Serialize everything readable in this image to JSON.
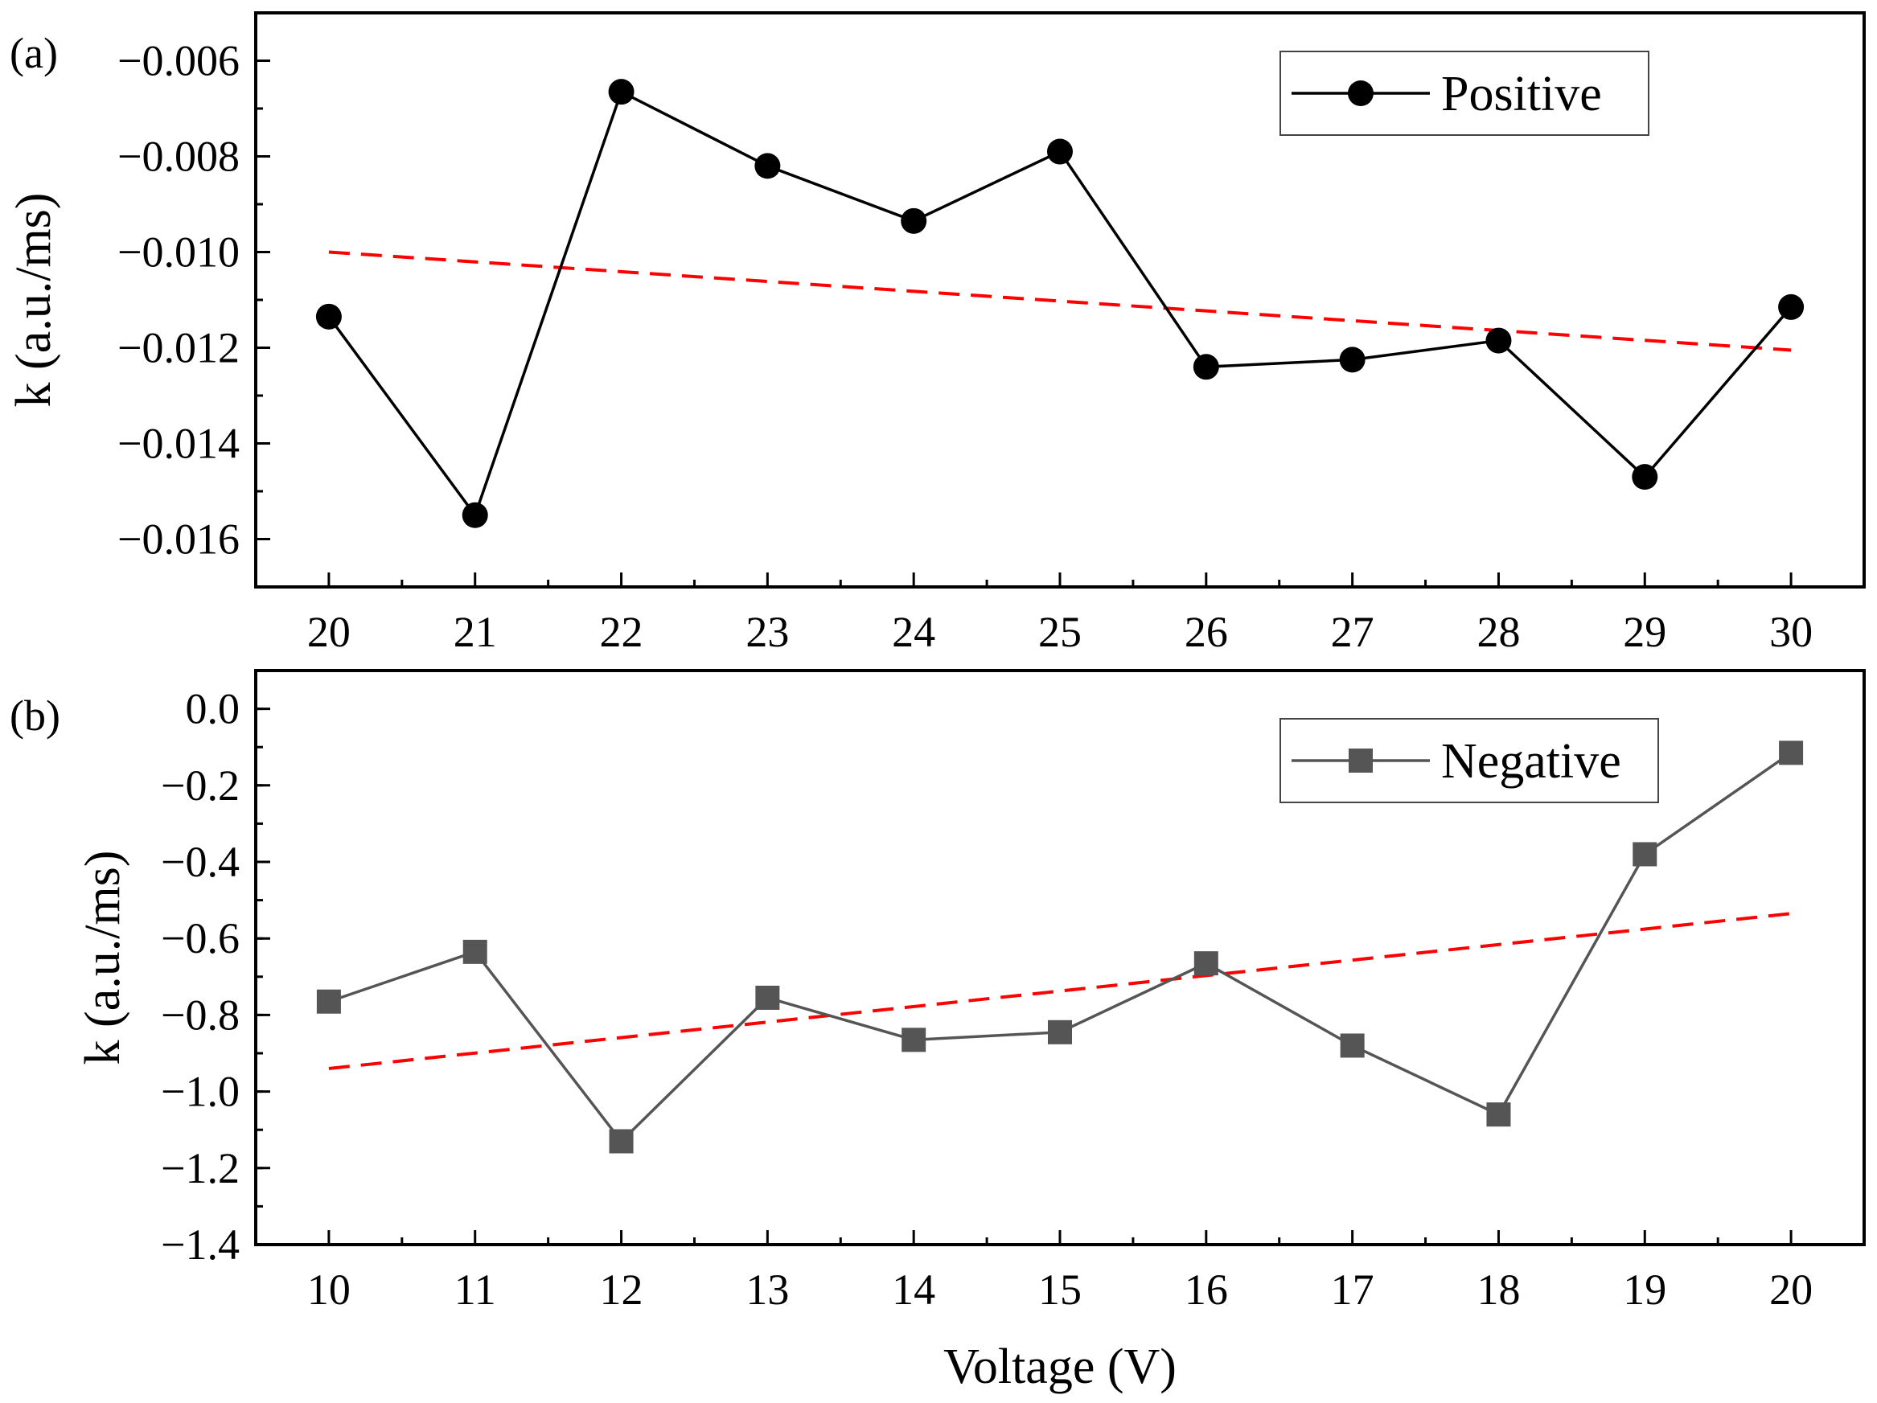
{
  "chart_data": [
    {
      "type": "line",
      "panel_label": "(a)",
      "ylabel": "k (a.u./ms)",
      "xlabel": "",
      "xlim": [
        19.5,
        30.5
      ],
      "ylim": [
        -0.017,
        -0.005
      ],
      "x_ticks": [
        20,
        21,
        22,
        23,
        24,
        25,
        26,
        27,
        28,
        29,
        30
      ],
      "x_tick_labels": [
        "20",
        "21",
        "22",
        "23",
        "24",
        "25",
        "26",
        "27",
        "28",
        "29",
        "30"
      ],
      "y_ticks": [
        -0.006,
        -0.008,
        -0.01,
        -0.012,
        -0.014,
        -0.016
      ],
      "y_tick_labels": [
        "−0.006",
        "−0.008",
        "−0.010",
        "−0.012",
        "−0.014",
        "−0.016"
      ],
      "legend_position": "top-right",
      "series": [
        {
          "name": "Positive",
          "marker": "circle",
          "color": "#000000",
          "x": [
            20,
            21,
            22,
            23,
            24,
            25,
            26,
            27,
            28,
            29,
            30
          ],
          "y": [
            -0.01135,
            -0.0155,
            -0.00665,
            -0.0082,
            -0.00935,
            -0.0079,
            -0.0124,
            -0.01225,
            -0.01185,
            -0.0147,
            -0.01115
          ]
        }
      ],
      "fit": {
        "color": "#ff0000",
        "style": "dashed",
        "x": [
          20,
          30
        ],
        "y": [
          -0.01,
          -0.01205
        ]
      }
    },
    {
      "type": "line",
      "panel_label": "(b)",
      "ylabel": "k (a.u./ms)",
      "xlabel": "Voltage (V)",
      "xlim": [
        9.5,
        20.5
      ],
      "ylim": [
        -1.4,
        0.1
      ],
      "x_ticks": [
        10,
        11,
        12,
        13,
        14,
        15,
        16,
        17,
        18,
        19,
        20
      ],
      "x_tick_labels": [
        "10",
        "11",
        "12",
        "13",
        "14",
        "15",
        "16",
        "17",
        "18",
        "19",
        "20"
      ],
      "y_ticks": [
        0.0,
        -0.2,
        -0.4,
        -0.6,
        -0.8,
        -1.0,
        -1.2,
        -1.4
      ],
      "y_tick_labels": [
        "0.0",
        "−0.2",
        "−0.4",
        "−0.6",
        "−0.8",
        "−1.0",
        "−1.2",
        "−1.4"
      ],
      "legend_position": "top-right",
      "series": [
        {
          "name": "Negative",
          "marker": "square",
          "color": "#555555",
          "x": [
            10,
            11,
            12,
            13,
            14,
            15,
            16,
            17,
            18,
            19,
            20
          ],
          "y": [
            -0.765,
            -0.635,
            -1.13,
            -0.755,
            -0.865,
            -0.845,
            -0.665,
            -0.88,
            -1.06,
            -0.38,
            -0.115
          ]
        }
      ],
      "fit": {
        "color": "#ff0000",
        "style": "dashed",
        "x": [
          10,
          20
        ],
        "y": [
          -0.94,
          -0.535
        ]
      }
    }
  ]
}
